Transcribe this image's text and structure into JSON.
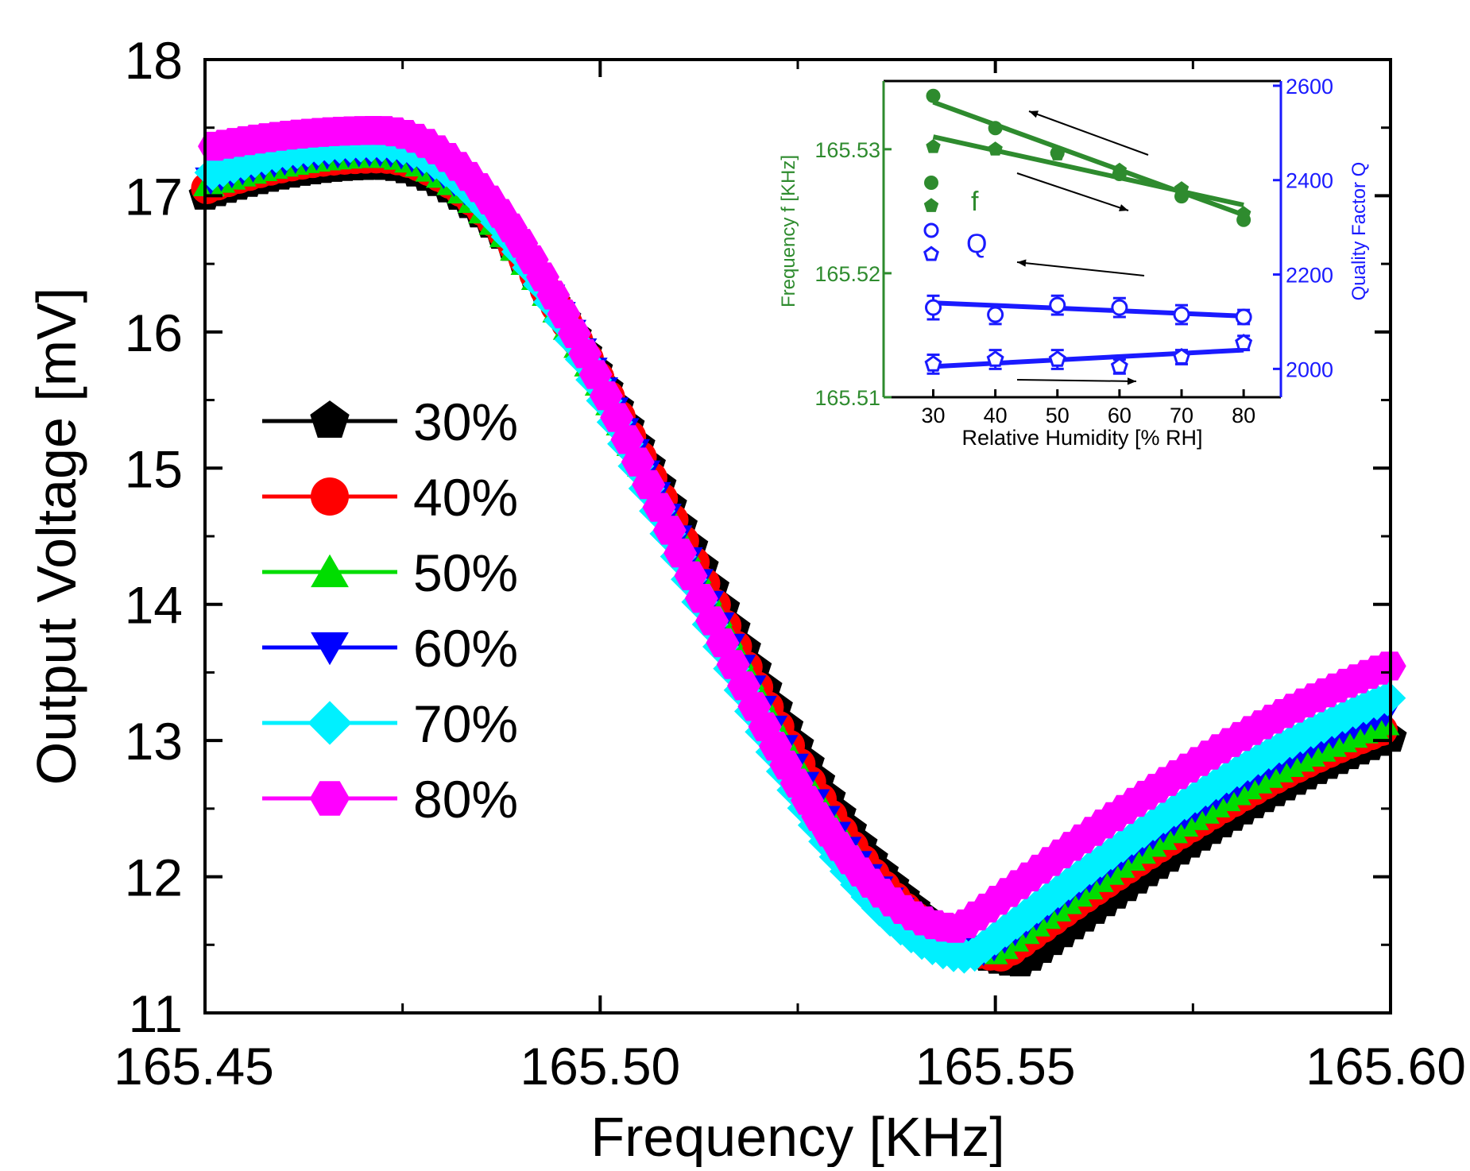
{
  "chart_data": [
    {
      "type": "scatter",
      "xlabel": "Frequency [KHz]",
      "ylabel": "Output Voltage [mV]",
      "xlim": [
        165.45,
        165.6
      ],
      "ylim": [
        11,
        18
      ],
      "xticks": [
        "165.45",
        "165.50",
        "165.55",
        "165.60"
      ],
      "yticks": [
        "11",
        "12",
        "13",
        "14",
        "15",
        "16",
        "17",
        "18"
      ],
      "legend_position": "left-middle",
      "series": [
        {
          "name": "30%",
          "color": "#000000",
          "marker": "pentagon",
          "resonance_x": 165.5535,
          "resonance_y": 11.37,
          "start_y": 17.0,
          "plateau_y": 17.22,
          "end_y": 13.02
        },
        {
          "name": "40%",
          "color": "#ff0000",
          "marker": "circle",
          "resonance_x": 165.551,
          "resonance_y": 11.42,
          "start_y": 17.05,
          "plateau_y": 17.28,
          "end_y": 13.1
        },
        {
          "name": "50%",
          "color": "#00dd00",
          "marker": "triangle-up",
          "resonance_x": 165.55,
          "resonance_y": 11.45,
          "start_y": 17.08,
          "plateau_y": 17.3,
          "end_y": 13.15
        },
        {
          "name": "60%",
          "color": "#0000ff",
          "marker": "triangle-down",
          "resonance_x": 165.549,
          "resonance_y": 11.45,
          "start_y": 17.1,
          "plateau_y": 17.32,
          "end_y": 13.22
        },
        {
          "name": "70%",
          "color": "#00f0ff",
          "marker": "diamond",
          "resonance_x": 165.547,
          "resonance_y": 11.42,
          "start_y": 17.15,
          "plateau_y": 17.38,
          "end_y": 13.32
        },
        {
          "name": "80%",
          "color": "#ff00ff",
          "marker": "hexagon",
          "resonance_x": 165.5455,
          "resonance_y": 11.62,
          "start_y": 17.35,
          "plateau_y": 17.48,
          "end_y": 13.55
        }
      ]
    },
    {
      "type": "scatter",
      "role": "inset",
      "xlabel": "Relative Humidity [% RH]",
      "ylabel_left": "Frequency f [KHz]",
      "ylabel_right": "Quality Factor Q",
      "xlim": [
        22,
        86
      ],
      "ylim_left": [
        165.51,
        165.5355
      ],
      "ylim_right": [
        1940,
        2610
      ],
      "xticks": [
        "30",
        "40",
        "50",
        "60",
        "70",
        "80"
      ],
      "yticks_left": [
        "165.51",
        "165.52",
        "165.53"
      ],
      "yticks_right": [
        "2000",
        "2200",
        "2400",
        "2600"
      ],
      "left_color": "#2e8b2e",
      "right_color": "#1a1aff",
      "legend": {
        "f_label": "f",
        "q_label": "Q"
      },
      "x": [
        30,
        40,
        50,
        60,
        70,
        80
      ],
      "series": [
        {
          "name": "f",
          "group": "f",
          "marker": "circle",
          "filled": true,
          "axis": "left",
          "values": [
            165.5343,
            165.5317,
            165.5297,
            165.528,
            165.5262,
            165.5243
          ]
        },
        {
          "name": "f",
          "group": "f",
          "marker": "pentagon",
          "filled": true,
          "axis": "left",
          "values": [
            165.5302,
            165.53,
            165.5296,
            165.5283,
            165.5268,
            165.5248
          ]
        },
        {
          "name": "Q",
          "group": "Q",
          "marker": "circle",
          "filled": false,
          "axis": "right",
          "values": [
            2130,
            2115,
            2135,
            2130,
            2115,
            2110
          ],
          "errors": [
            25,
            20,
            20,
            20,
            20,
            15
          ]
        },
        {
          "name": "Q",
          "group": "Q",
          "marker": "pentagon",
          "filled": false,
          "axis": "right",
          "values": [
            2010,
            2020,
            2020,
            2005,
            2025,
            2055
          ],
          "errors": [
            20,
            20,
            20,
            15,
            15,
            15
          ]
        }
      ],
      "fits": [
        {
          "axis": "left",
          "from": [
            30,
            165.5338
          ],
          "to": [
            80,
            165.5247
          ]
        },
        {
          "axis": "left",
          "from": [
            30,
            165.531
          ],
          "to": [
            80,
            165.5255
          ]
        },
        {
          "axis": "right",
          "from": [
            30,
            2140
          ],
          "to": [
            80,
            2112
          ]
        },
        {
          "axis": "right",
          "from": [
            30,
            2005
          ],
          "to": [
            80,
            2040
          ]
        }
      ]
    }
  ]
}
